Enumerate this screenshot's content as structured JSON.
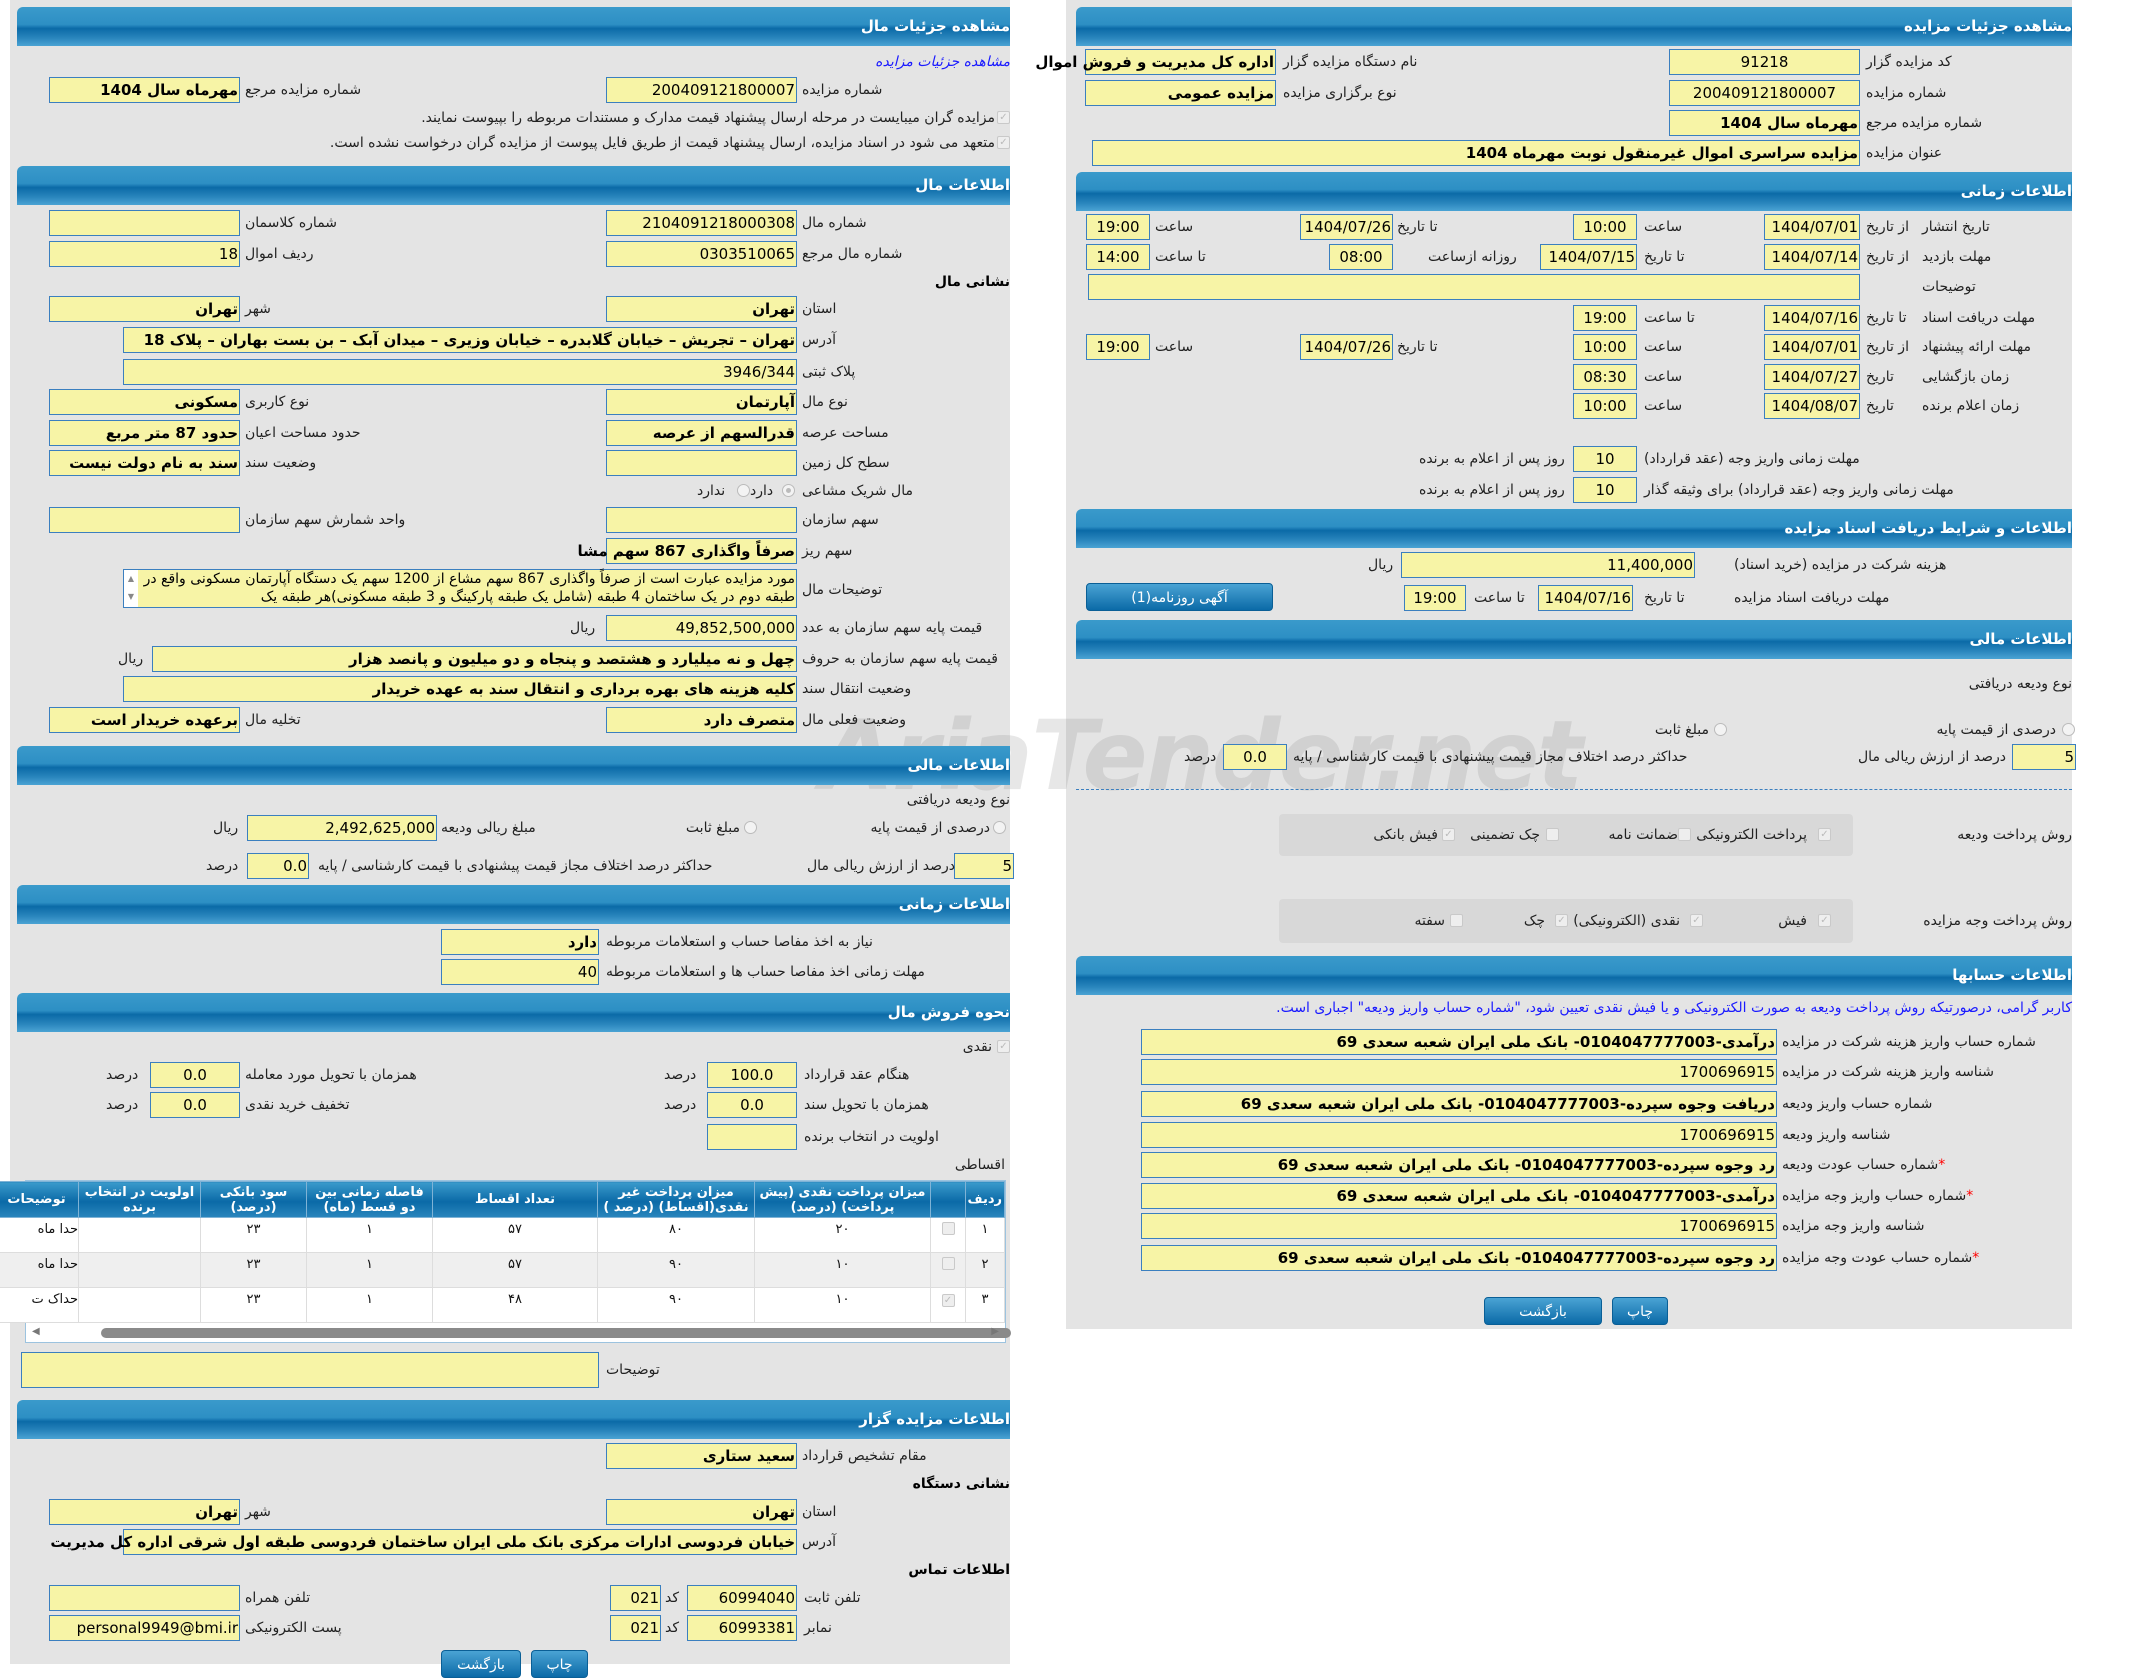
{
  "left": {
    "title": "مشاهده جزئیات مال",
    "link": "مشاهده جزئیات مزایده",
    "auction_no_label": "شماره مزایده",
    "auction_no": "200409121800007",
    "ref_label": "شماره مزایده مرجع",
    "ref": "مهرماه سال 1404",
    "note1": "مزایده گران میبایست در مرحله ارسال پیشنهاد قیمت مدارک و مستندات مربوطه را بپیوست نمایند.",
    "note2": "متعهد می شود در اسناد مزایده، ارسال پیشنهاد قیمت از طریق فایل پیوست از مزایده گران درخواست نشده است.",
    "item_title": "اطلاعات مال",
    "item_no_label": "شماره مال",
    "item_no": "2104091218000308",
    "class_no_label": "شماره کلاسمان",
    "class_no": "",
    "item_ref_label": "شماره مال مرجع",
    "item_ref": "0303510065",
    "row_label": "ردیف اموال",
    "row": "18",
    "address_heading": "نشانی مال",
    "province_label": "استان",
    "province": "تهران",
    "city_label": "شهر",
    "city": "تهران",
    "address_label": "آدرس",
    "address": "تهران – تجریش – خیابان گلابدره – خیابان وزیری – میدان آبک – بن بست بهاران – پلاک 18",
    "plate_label": "پلاک ثبتی",
    "plate": "3946/344",
    "type_label": "نوع مال",
    "type": "آپارتمان",
    "usage_label": "نوع کاربری",
    "usage": "مسکونی",
    "land_area_label": "مساحت عرصه",
    "land_area": "قدرالسهم از عرصه",
    "building_area_label": "حدود مساحت اعیان",
    "building_area": "حدود 87 متر مربع",
    "total_land_label": "سطح کل زمین",
    "total_land": "",
    "deed_label": "وضعیت سند",
    "deed": "سند به نام دولت نیست",
    "partner_label": "مال شریک مشاعی",
    "partner_yes": "دارد",
    "partner_no": "ندارد",
    "org_share_label": "سهم سازمان",
    "org_share": "",
    "share_unit_label": "واحد شمارش سهم سازمان",
    "share_unit": "",
    "sub_share_label": "سهم ریز",
    "sub_share": "صرفاً واگذاری 867 سهم مشا",
    "desc_label": "توضیحات مال",
    "desc": "مورد مزایده عبارت است از صرفاً واگذاری 867 سهم مشاع از 1200 سهم یک دستگاه آپارتمان مسکونی واقع در طبقه دوم در یک ساختمان 4 طبقه (شامل یک طبقه پارکینگ و 3 طبقه مسکونی)هر طبقه یک",
    "price_num_label": "قیمت پایه سهم سازمان به عدد",
    "price_num": "49,852,500,000",
    "rial": "ریال",
    "price_words_label": "قیمت پایه سهم سازمان به حروف",
    "price_words": "چهل و نه میلیارد و هشتصد و پنجاه و دو میلیون و پانصد هزار",
    "transfer_label": "وضعیت انتقال سند",
    "transfer": "کلیه هزینه های بهره برداری و انتقال سند به عهده خریدار",
    "status_label": "وضعیت فعلی مال",
    "status": "متصرف دارد",
    "evac_label": "تخلیه مال",
    "evac": "برعهده خریدار است",
    "fin_title": "اطلاعات مالی",
    "deposit_type": "نوع ودیعه دریافتی",
    "pct_base": "درصدی از قیمت پایه",
    "fixed": "مبلغ ثابت",
    "deposit_amount_label": "مبلغ ریالی ودیعه",
    "deposit_amount": "2,492,625,000",
    "pct_value": "5",
    "pct_value_label": "درصد از ارزش ریالی مال",
    "max_diff_label": "حداکثر درصد اختلاف مجاز قیمت پیشنهادی با قیمت کارشناسی / پایه",
    "max_diff": "0.0",
    "percent": "درصد",
    "time_title": "اطلاعات زمانی",
    "clearance_label": "نیاز به اخذ مفاصا حساب و استعلامات مربوطه",
    "clearance": "دارد",
    "clearance_time_label": "مهلت زمانی اخذ مفاصا حساب ها و استعلامات مربوطه",
    "clearance_time": "40",
    "sale_title": "نحوه فروش مال",
    "cash": "نقدی",
    "on_contract_label": "هنگام عقد قرارداد",
    "on_contract": "100.0",
    "on_delivery_label": "همزمان با تحویل مورد معامله",
    "on_delivery": "0.0",
    "on_deed_label": "همزمان با تحویل سند",
    "on_deed": "0.0",
    "cash_discount_label": "تخفیف خرید نقدی",
    "cash_discount": "0.0",
    "priority_label": "اولویت در انتخاب برنده",
    "priority": "",
    "installment": "اقساطی",
    "table": {
      "headers": [
        "ردیف",
        "",
        "میزان پرداخت نقدی (پیش پرداخت) (درصد)",
        "میزان پرداخت غیر نقدی(اقساط) (درصد )",
        "تعداد اقساط",
        "فاصله زمانی بین دو قسط (ماه)",
        "سود بانکی (درصد)",
        "اولویت در انتخاب برنده",
        "توضیحات"
      ],
      "rows": [
        [
          "۱",
          "",
          "۲۰",
          "۸۰",
          "۵۷",
          "۱",
          "۲۳",
          "",
          "حدا ماه"
        ],
        [
          "۲",
          "",
          "۱۰",
          "۹۰",
          "۵۷",
          "۱",
          "۲۳",
          "",
          "حدا ماه"
        ],
        [
          "۳",
          "✓",
          "۱۰",
          "۹۰",
          "۴۸",
          "۱",
          "۲۳",
          "",
          "حداک ت"
        ]
      ]
    },
    "notes_label": "توضیحات",
    "notes": "",
    "org_title": "اطلاعات مزایده گزار",
    "authority_label": "مقام تشخیص قرارداد",
    "authority": "سعید ستاری",
    "org_address_heading": "نشانی دستگاه",
    "org_province": "تهران",
    "org_city": "تهران",
    "org_address": "خیابان فردوسی ادارات مرکزی بانک ملی ایران ساختمان فردوسی طبقه اول شرقی اداره کل مدیریت",
    "contact_heading": "اطلاعات تماس",
    "phone_label": "تلفن ثابت",
    "phone": "60994040",
    "code_label": "کد",
    "phone_code": "021",
    "mobile_label": "تلفن همراه",
    "mobile": "",
    "fax_label": "نمابر",
    "fax": "60993381",
    "fax_code": "021",
    "email_label": "پست الکترونیکی",
    "email": "personal9949@bmi.ir",
    "back": "بازگشت",
    "print": "چاپ"
  },
  "right": {
    "title": "مشاهده جزئیات مزایده",
    "org_code_label": "کد مزایده گزار",
    "org_code": "91218",
    "org_name_label": "نام دستگاه مزایده گزار",
    "org_name": "اداره کل مدیریت و فروش اموال",
    "auction_no_label": "شماره مزایده",
    "auction_no": "200409121800007",
    "kind_label": "نوع برگزاری مزایده",
    "kind": "مزایده عمومی",
    "ref_label": "شماره مزایده مرجع",
    "ref": "مهرماه سال 1404",
    "subject_label": "عنوان مزایده",
    "subject": "مزایده سراسری اموال غیرمنقول نوبت مهرماه 1404",
    "time_title": "اطلاعات زمانی",
    "from_date": "از تاریخ",
    "to_date": "تا تاریخ",
    "time": "ساعت",
    "to_time": "تا ساعت",
    "date": "تاریخ",
    "daily_from": "روزانه ازساعت",
    "publish_label": "تاریخ انتشار",
    "publish_from": "1404/07/01",
    "publish_from_time": "10:00",
    "publish_to": "1404/07/26",
    "publish_to_time": "19:00",
    "visit_label": "مهلت بازدید",
    "visit_from": "1404/07/14",
    "visit_to": "1404/07/15",
    "visit_daily_from": "08:00",
    "visit_to_time": "14:00",
    "desc_label": "توضیحات",
    "desc": "",
    "docs_label": "مهلت دریافت اسناد",
    "docs_to": "1404/07/16",
    "docs_to_time": "19:00",
    "offer_label": "مهلت ارائه پیشنهاد",
    "offer_from": "1404/07/01",
    "offer_from_time": "10:00",
    "offer_to": "1404/07/26",
    "offer_to_time": "19:00",
    "opening_label": "زمان بازگشایی",
    "opening_date": "1404/07/27",
    "opening_time": "08:30",
    "winner_label": "زمان اعلام برنده",
    "winner_date": "1404/08/07",
    "winner_time": "10:00",
    "pay_deadline_label": "مهلت زمانی واریز وجه (عقد قرارداد)",
    "pay_deadline": "10",
    "pay_deadline_coll_label": "مهلت زمانی واریز وجه (عقد قرارداد) برای وثیقه گذار",
    "pay_deadline_coll": "10",
    "days_after": "روز پس از اعلام به برنده",
    "docs_title": "اطلاعات و شرایط دریافت اسناد مزایده",
    "fee_label": "هزینه شرکت در مزایده (خرید اسناد)",
    "fee": "11,400,000",
    "rial": "ریال",
    "docs_deadline_label": "مهلت دریافت اسناد مزایده",
    "docs_deadline_date": "1404/07/16",
    "docs_deadline_time": "19:00",
    "newspaper_btn": "آگهی روزنامه(1)",
    "fin_title": "اطلاعات مالی",
    "deposit_type": "نوع ودیعه دریافتی",
    "pct_base": "درصدی از قیمت پایه",
    "fixed": "مبلغ ثابت",
    "pct_value": "5",
    "pct_value_label": "درصد از ارزش ریالی مال",
    "max_diff_label": "حداکثر درصد اختلاف مجاز قیمت پیشنهادی با قیمت کارشناسی / پایه",
    "max_diff": "0.0",
    "percent": "درصد",
    "deposit_methods_label": "روش پرداخت ودیعه",
    "deposit_methods": [
      {
        "label": "پرداخت الکترونیکی",
        "checked": true
      },
      {
        "label": "ضمانت نامه",
        "checked": false
      },
      {
        "label": "چک تضمینی",
        "checked": false
      },
      {
        "label": "فیش بانکی",
        "checked": true
      }
    ],
    "pay_methods_label": "روش پرداخت وجه مزایده",
    "pay_methods": [
      {
        "label": "فیش",
        "checked": true
      },
      {
        "label": "نقدی (الکترونیکی)",
        "checked": true
      },
      {
        "label": "چک",
        "checked": true
      },
      {
        "label": "سفته",
        "checked": false
      }
    ],
    "acc_title": "اطلاعات حسابها",
    "acc_notice": "کاربر گرامی، درصورتیکه روش پرداخت ودیعه به صورت الکترونیکی و یا فیش نقدی تعیین شود، \"شماره حساب واریز ودیعه\" اجباری است.",
    "accounts": [
      {
        "label": "شماره حساب واریز هزینه شرکت در مزایده",
        "value": "درآمدی-0104047777003- بانک ملی ایران شعبه سعدی 69",
        "required": ""
      },
      {
        "label": "شناسه واریز هزینه شرکت در مزایده",
        "value": "1700696915",
        "required": ""
      },
      {
        "label": "شماره حساب واریز ودیعه",
        "value": "دریافت وجوه سپرده-0104047777003- بانک ملی ایران شعبه سعدی 69",
        "required": ""
      },
      {
        "label": "شناسه واریز ودیعه",
        "value": "1700696915",
        "required": ""
      },
      {
        "label": "شماره حساب عودت ودیعه",
        "value": "رد وجوه سپرده-0104047777003- بانک ملی ایران شعبه سعدی 69",
        "required": "*"
      },
      {
        "label": "شماره حساب واریز وجه مزایده",
        "value": "درآمدی-0104047777003- بانک ملی ایران شعبه سعدی 69",
        "required": "*"
      },
      {
        "label": "شناسه واریز وجه مزایده",
        "value": "1700696915",
        "required": ""
      },
      {
        "label": "شماره حساب عودت وجه مزایده",
        "value": "رد وجوه سپرده-0104047777003- بانک ملی ایران شعبه سعدی 69",
        "required": "*"
      }
    ],
    "back": "بازگشت",
    "print": "چاپ"
  },
  "watermark": "AriaTender.net"
}
